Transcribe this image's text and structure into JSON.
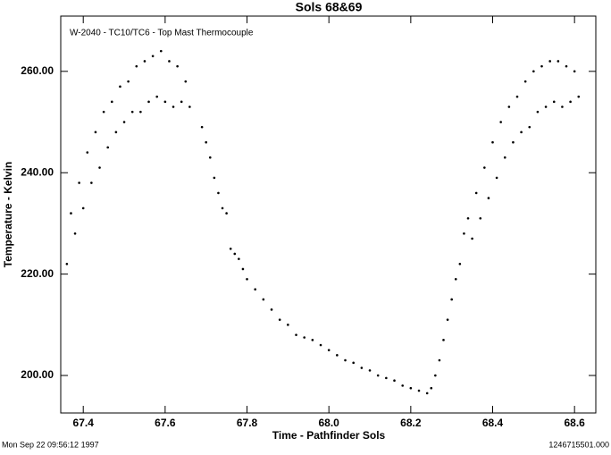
{
  "chart_data": {
    "type": "scatter",
    "title": "Sols 68&69",
    "annotation": "W-2040 - TC10/TC6 - Top Mast Thermocouple",
    "xlabel": "Time - Pathfinder Sols",
    "ylabel": "Temperature - Kelvin",
    "footer_left": "Mon Sep 22 09:56:12 1997",
    "footer_right": "1246715501.000",
    "color": "#000000",
    "xlim": [
      67.345,
      68.652
    ],
    "ylim": [
      192.6,
      270.9
    ],
    "xticks": [
      67.4,
      67.6,
      67.8,
      {
        "value": 68.0,
        "label": "68.0"
      },
      68.2,
      68.4,
      68.6
    ],
    "yticks": [
      {
        "value": 200,
        "label": "200.00"
      },
      {
        "value": 220,
        "label": "220.00"
      },
      {
        "value": 240,
        "label": "240.00"
      },
      {
        "value": 260,
        "label": "260.00"
      }
    ],
    "x": [
      67.36,
      67.37,
      67.38,
      67.39,
      67.4,
      67.41,
      67.42,
      67.43,
      67.44,
      67.45,
      67.46,
      67.47,
      67.48,
      67.49,
      67.5,
      67.51,
      67.52,
      67.53,
      67.54,
      67.55,
      67.56,
      67.57,
      67.58,
      67.59,
      67.6,
      67.61,
      67.62,
      67.63,
      67.64,
      67.65,
      67.66,
      67.69,
      67.7,
      67.71,
      67.72,
      67.73,
      67.74,
      67.75,
      67.76,
      67.77,
      67.78,
      67.79,
      67.8,
      67.82,
      67.84,
      67.86,
      67.88,
      67.9,
      67.92,
      67.94,
      67.96,
      67.98,
      68.0,
      68.02,
      68.04,
      68.06,
      68.08,
      68.1,
      68.12,
      68.14,
      68.16,
      68.18,
      68.2,
      68.22,
      68.24,
      68.25,
      68.26,
      68.27,
      68.28,
      68.29,
      68.3,
      68.31,
      68.32,
      68.33,
      68.34,
      68.35,
      68.36,
      68.37,
      68.38,
      68.39,
      68.4,
      68.41,
      68.42,
      68.43,
      68.44,
      68.45,
      68.46,
      68.47,
      68.48,
      68.49,
      68.5,
      68.51,
      68.52,
      68.53,
      68.54,
      68.55,
      68.56,
      68.57,
      68.58,
      68.59,
      68.6,
      68.61
    ],
    "y": [
      222,
      232,
      228,
      238,
      233,
      244,
      238,
      248,
      241,
      252,
      245,
      254,
      248,
      257,
      250,
      258,
      252,
      261,
      252,
      262,
      254,
      263,
      255,
      264,
      254,
      262,
      253,
      261,
      254,
      258,
      253,
      249,
      246,
      243,
      239,
      236,
      233,
      232,
      225,
      224,
      223,
      221,
      219,
      217,
      215,
      213,
      211,
      210,
      208,
      207.5,
      207,
      206,
      205,
      204,
      203,
      202.5,
      201.5,
      201,
      200,
      199.5,
      199,
      198,
      197.5,
      197,
      196.5,
      197.5,
      200,
      203,
      207,
      211,
      215,
      219,
      222,
      228,
      231,
      227,
      236,
      231,
      241,
      235,
      246,
      239,
      250,
      243,
      253,
      246,
      255,
      248,
      258,
      249,
      260,
      252,
      261,
      253,
      262,
      254,
      262,
      253,
      261,
      254,
      260,
      255
    ]
  }
}
